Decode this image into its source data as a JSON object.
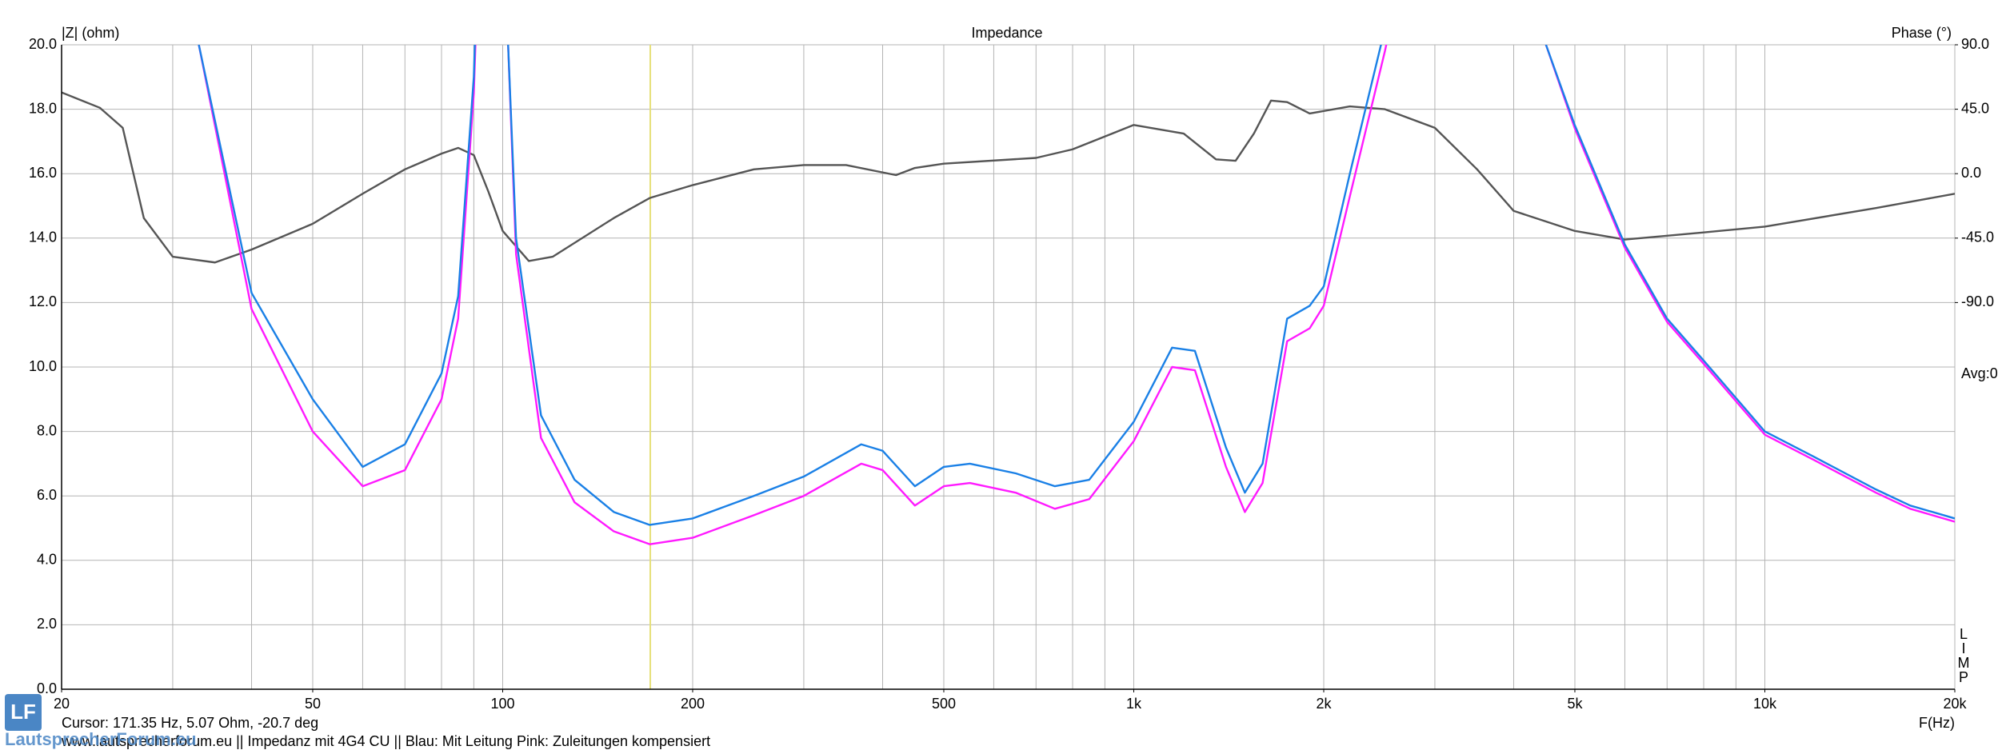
{
  "chart_data": {
    "type": "line",
    "title": "Impedance",
    "y_label": "|Z| (ohm)",
    "y2_label": "Phase (°)",
    "x_label": "F(Hz)",
    "avg_label": "Avg:0",
    "limp_letters": [
      "L",
      "I",
      "M",
      "P"
    ],
    "xscale": "log",
    "xlim": [
      20,
      20000
    ],
    "xticks": [
      20,
      50,
      100,
      200,
      500,
      {
        "value": 1000,
        "label": "1k"
      },
      {
        "value": 2000,
        "label": "2k"
      },
      {
        "value": 5000,
        "label": "5k"
      },
      {
        "value": 10000,
        "label": "10k"
      },
      {
        "value": 20000,
        "label": "20k"
      }
    ],
    "xgrid": [
      20,
      30,
      40,
      50,
      60,
      70,
      80,
      90,
      100,
      200,
      300,
      400,
      500,
      600,
      700,
      800,
      900,
      1000,
      2000,
      3000,
      4000,
      5000,
      6000,
      7000,
      8000,
      9000,
      10000,
      20000
    ],
    "ylim": [
      0,
      20
    ],
    "yticks": [
      {
        "value": 0,
        "label": "0.0"
      },
      {
        "value": 2,
        "label": "2.0"
      },
      {
        "value": 4,
        "label": "4.0"
      },
      {
        "value": 6,
        "label": "6.0"
      },
      {
        "value": 8,
        "label": "8.0"
      },
      {
        "value": 10,
        "label": "10.0"
      },
      {
        "value": 12,
        "label": "12.0"
      },
      {
        "value": 14,
        "label": "14.0"
      },
      {
        "value": 16,
        "label": "16.0"
      },
      {
        "value": 18,
        "label": "18.0"
      },
      {
        "value": 20,
        "label": "20.0"
      }
    ],
    "y2lim": [
      -360,
      90
    ],
    "y2ticks": [
      {
        "value": -90,
        "label": "-90.0"
      },
      {
        "value": -45,
        "label": "-45.0"
      },
      {
        "value": 0,
        "label": "0.0"
      },
      {
        "value": 45,
        "label": "45.0"
      },
      {
        "value": 90,
        "label": "90.0"
      }
    ],
    "grid": true,
    "cursor": {
      "x": 171.35,
      "color": "#e6e07a"
    },
    "series": [
      {
        "color": "#1a80e6",
        "x": [
          30,
          33,
          40,
          50,
          60,
          70,
          80,
          85,
          90,
          92,
          97,
          102,
          105,
          115,
          130,
          150,
          171,
          200,
          250,
          300,
          370,
          400,
          450,
          500,
          550,
          650,
          750,
          850,
          1000,
          1150,
          1250,
          1400,
          1500,
          1600,
          1750,
          1900,
          2000,
          2200,
          2500,
          3000,
          3500,
          4000,
          4500,
          5000,
          6000,
          7000,
          8000,
          10000,
          12000,
          15000,
          17000,
          20000
        ],
        "values": [
          28,
          20,
          12.3,
          9.0,
          6.9,
          7.6,
          9.8,
          12.2,
          19,
          25,
          40,
          20,
          14,
          8.5,
          6.5,
          5.5,
          5.1,
          5.3,
          6.0,
          6.6,
          7.6,
          7.4,
          6.3,
          6.9,
          7.0,
          6.7,
          6.3,
          6.5,
          8.3,
          10.6,
          10.5,
          7.5,
          6.1,
          7.0,
          11.5,
          11.9,
          12.5,
          16,
          20.5,
          28,
          32,
          26,
          20,
          17.5,
          13.8,
          11.5,
          10.2,
          8.0,
          7.2,
          6.2,
          5.7,
          5.3
        ]
      },
      {
        "color": "#ff1aff",
        "x": [
          30,
          33,
          40,
          50,
          60,
          70,
          80,
          85,
          90,
          92,
          97,
          102,
          105,
          115,
          130,
          150,
          171,
          200,
          250,
          300,
          370,
          400,
          450,
          500,
          550,
          650,
          750,
          850,
          1000,
          1150,
          1250,
          1400,
          1500,
          1600,
          1750,
          1900,
          2000,
          2200,
          2500,
          3000,
          3500,
          4000,
          4500,
          5000,
          6000,
          7000,
          8000,
          10000,
          12000,
          15000,
          17000,
          20000
        ],
        "values": [
          27,
          20,
          11.8,
          8.0,
          6.3,
          6.8,
          9.0,
          11.5,
          18.5,
          24,
          40,
          20,
          13.5,
          7.8,
          5.8,
          4.9,
          4.5,
          4.7,
          5.4,
          6.0,
          7.0,
          6.8,
          5.7,
          6.3,
          6.4,
          6.1,
          5.6,
          5.9,
          7.7,
          10.0,
          9.9,
          6.9,
          5.5,
          6.4,
          10.8,
          11.2,
          11.9,
          15.3,
          19.8,
          27,
          32,
          26,
          20,
          17.4,
          13.7,
          11.4,
          10.1,
          7.9,
          7.1,
          6.1,
          5.6,
          5.2
        ]
      },
      {
        "color": "#555555",
        "axis": "y2",
        "x": [
          20,
          23,
          25,
          27,
          30,
          35,
          40,
          50,
          60,
          70,
          80,
          85,
          90,
          95,
          100,
          110,
          120,
          150,
          171,
          200,
          250,
          300,
          350,
          420,
          450,
          500,
          700,
          800,
          1000,
          1200,
          1350,
          1450,
          1550,
          1650,
          1750,
          1900,
          2200,
          2500,
          3000,
          3500,
          4000,
          5000,
          6000,
          8000,
          10000,
          15000,
          20000
        ],
        "values": [
          56.7,
          46,
          32,
          -31,
          -58,
          -62,
          -53,
          -35,
          -14,
          3,
          14,
          18,
          13,
          -13,
          -40,
          -61,
          -58,
          -31,
          -17,
          -8,
          3,
          6,
          6,
          -1,
          4,
          7,
          11,
          17,
          34,
          28,
          10,
          9,
          28,
          51,
          50,
          42,
          47,
          45,
          32,
          3,
          -26,
          -40,
          -46,
          -41,
          -37,
          -24,
          -14
        ]
      }
    ]
  },
  "cursor_readout": "Cursor: 171.35 Hz, 5.07 Ohm, -20.7 deg",
  "footer": "www.lautsprecherforum.eu  ||  Impedanz mit 4G4 CU  ||  Blau: Mit Leitung     Pink: Zuleitungen kompensiert",
  "logo": {
    "mark": "LF",
    "text": "LautsprecherForum.eu"
  }
}
